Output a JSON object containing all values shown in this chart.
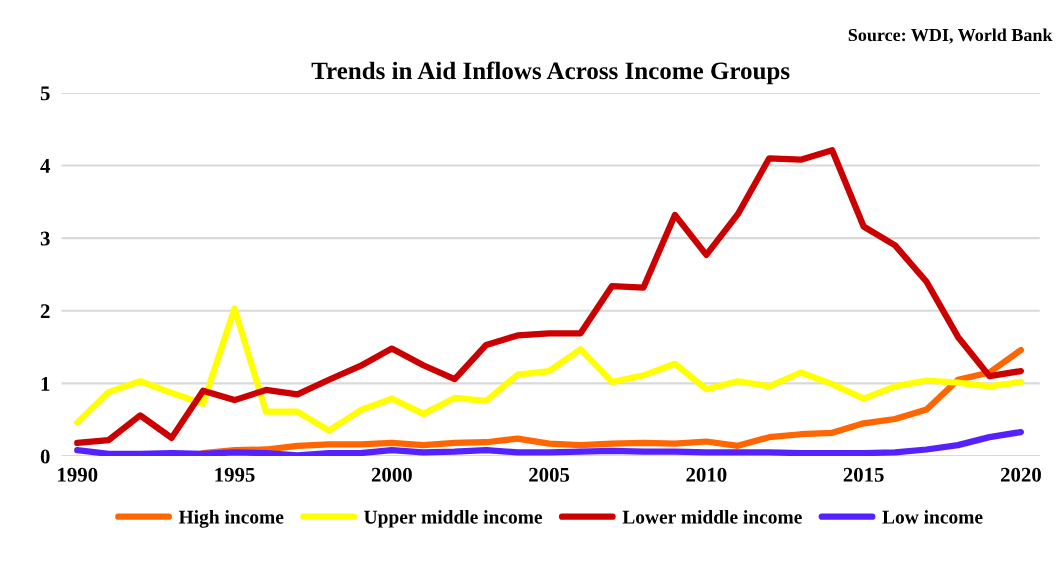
{
  "chart_data": {
    "type": "line",
    "title": "Trends in Aid Inflows Across Income Groups",
    "annotations": [
      "Source: WDI, World Bank"
    ],
    "x": [
      1990,
      1991,
      1992,
      1993,
      1994,
      1995,
      1996,
      1997,
      1998,
      1999,
      2000,
      2001,
      2002,
      2003,
      2004,
      2005,
      2006,
      2007,
      2008,
      2009,
      2010,
      2011,
      2012,
      2013,
      2014,
      2015,
      2016,
      2017,
      2018,
      2019,
      2020
    ],
    "series": [
      {
        "name": "High income",
        "color": "#ff6600",
        "values": [
          null,
          null,
          null,
          null,
          0.04,
          0.08,
          0.09,
          0.14,
          0.16,
          0.16,
          0.18,
          0.15,
          0.18,
          0.19,
          0.24,
          0.17,
          0.15,
          0.17,
          0.18,
          0.17,
          0.2,
          0.14,
          0.26,
          0.3,
          0.32,
          0.45,
          0.51,
          0.64,
          1.05,
          1.15,
          1.46
        ]
      },
      {
        "name": "Upper middle income",
        "color": "#ffff00",
        "values": [
          0.46,
          0.88,
          1.03,
          0.87,
          0.72,
          2.03,
          0.61,
          0.61,
          0.35,
          0.63,
          0.79,
          0.58,
          0.8,
          0.76,
          1.12,
          1.17,
          1.47,
          1.02,
          1.11,
          1.27,
          0.92,
          1.03,
          0.96,
          1.15,
          0.99,
          0.79,
          0.96,
          1.04,
          1.01,
          0.96,
          1.02
        ]
      },
      {
        "name": "Lower middle income",
        "color": "#cc0000",
        "values": [
          0.18,
          0.22,
          0.56,
          0.25,
          0.9,
          0.77,
          0.91,
          0.85,
          1.05,
          1.24,
          1.48,
          1.25,
          1.06,
          1.53,
          1.66,
          1.69,
          1.69,
          2.34,
          2.32,
          3.32,
          2.77,
          3.33,
          4.1,
          4.08,
          4.21,
          3.16,
          2.9,
          2.4,
          1.64,
          1.1,
          1.17
        ]
      },
      {
        "name": "Low income",
        "color": "#5522ff",
        "values": [
          0.08,
          0.03,
          0.03,
          0.04,
          0.03,
          0.05,
          0.04,
          0.01,
          0.04,
          0.04,
          0.08,
          0.05,
          0.06,
          0.08,
          0.05,
          0.05,
          0.06,
          0.07,
          0.06,
          0.06,
          0.05,
          0.05,
          0.05,
          0.04,
          0.04,
          0.04,
          0.05,
          0.09,
          0.15,
          0.26,
          0.33
        ]
      }
    ],
    "xlim": [
      1989.5,
      2020.6
    ],
    "xticks": [
      1990,
      1995,
      2000,
      2005,
      2010,
      2015,
      2020
    ],
    "ylim": [
      0,
      5
    ],
    "yticks": [
      0,
      1,
      2,
      3,
      4,
      5
    ],
    "grid": "y",
    "legend": "bottom",
    "marker": "none",
    "line_style": "solid"
  }
}
